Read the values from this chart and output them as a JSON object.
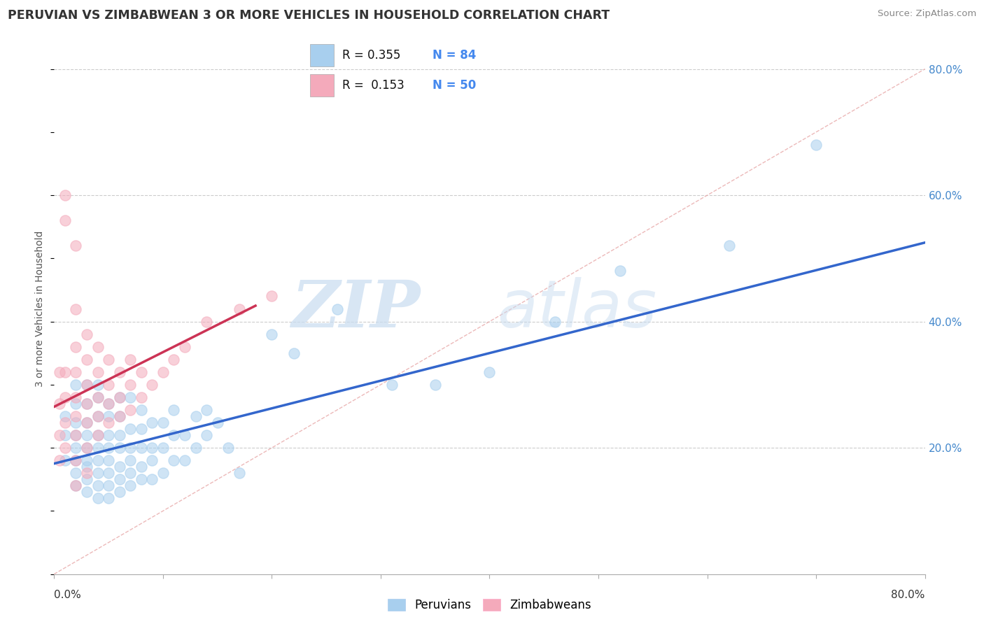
{
  "title": "PERUVIAN VS ZIMBABWEAN 3 OR MORE VEHICLES IN HOUSEHOLD CORRELATION CHART",
  "source": "Source: ZipAtlas.com",
  "ylabel": "3 or more Vehicles in Household",
  "ylabel_right_ticks": [
    "80.0%",
    "60.0%",
    "40.0%",
    "20.0%"
  ],
  "ylabel_right_vals": [
    0.8,
    0.6,
    0.4,
    0.2
  ],
  "xmin": 0.0,
  "xmax": 0.8,
  "ymin": 0.0,
  "ymax": 0.84,
  "legend_r_blue": "0.355",
  "legend_n_blue": "84",
  "legend_r_pink": "0.153",
  "legend_n_pink": "50",
  "blue_color": "#A8CFEE",
  "pink_color": "#F4AABB",
  "blue_line_color": "#3366CC",
  "pink_line_color": "#CC3355",
  "diagonal_color": "#E8A8A8",
  "trend_blue_x0": 0.0,
  "trend_blue_y0": 0.175,
  "trend_blue_x1": 0.8,
  "trend_blue_y1": 0.525,
  "trend_pink_x0": 0.0,
  "trend_pink_y0": 0.265,
  "trend_pink_x1": 0.185,
  "trend_pink_y1": 0.425,
  "watermark_zip": "ZIP",
  "watermark_atlas": "atlas",
  "blue_scatter_x": [
    0.01,
    0.01,
    0.01,
    0.02,
    0.02,
    0.02,
    0.02,
    0.02,
    0.02,
    0.02,
    0.02,
    0.03,
    0.03,
    0.03,
    0.03,
    0.03,
    0.03,
    0.03,
    0.03,
    0.03,
    0.04,
    0.04,
    0.04,
    0.04,
    0.04,
    0.04,
    0.04,
    0.04,
    0.04,
    0.05,
    0.05,
    0.05,
    0.05,
    0.05,
    0.05,
    0.05,
    0.05,
    0.06,
    0.06,
    0.06,
    0.06,
    0.06,
    0.06,
    0.06,
    0.07,
    0.07,
    0.07,
    0.07,
    0.07,
    0.07,
    0.08,
    0.08,
    0.08,
    0.08,
    0.08,
    0.09,
    0.09,
    0.09,
    0.09,
    0.1,
    0.1,
    0.1,
    0.11,
    0.11,
    0.11,
    0.12,
    0.12,
    0.13,
    0.13,
    0.14,
    0.14,
    0.15,
    0.16,
    0.17,
    0.2,
    0.22,
    0.26,
    0.31,
    0.35,
    0.4,
    0.46,
    0.52,
    0.62,
    0.7
  ],
  "blue_scatter_y": [
    0.18,
    0.22,
    0.25,
    0.14,
    0.16,
    0.18,
    0.2,
    0.22,
    0.24,
    0.27,
    0.3,
    0.13,
    0.15,
    0.17,
    0.18,
    0.2,
    0.22,
    0.24,
    0.27,
    0.3,
    0.12,
    0.14,
    0.16,
    0.18,
    0.2,
    0.22,
    0.25,
    0.28,
    0.3,
    0.12,
    0.14,
    0.16,
    0.18,
    0.2,
    0.22,
    0.25,
    0.27,
    0.13,
    0.15,
    0.17,
    0.2,
    0.22,
    0.25,
    0.28,
    0.14,
    0.16,
    0.18,
    0.2,
    0.23,
    0.28,
    0.15,
    0.17,
    0.2,
    0.23,
    0.26,
    0.15,
    0.18,
    0.2,
    0.24,
    0.16,
    0.2,
    0.24,
    0.18,
    0.22,
    0.26,
    0.18,
    0.22,
    0.2,
    0.25,
    0.22,
    0.26,
    0.24,
    0.2,
    0.16,
    0.38,
    0.35,
    0.42,
    0.3,
    0.3,
    0.32,
    0.4,
    0.48,
    0.52,
    0.68
  ],
  "pink_scatter_x": [
    0.005,
    0.005,
    0.005,
    0.005,
    0.01,
    0.01,
    0.01,
    0.01,
    0.01,
    0.02,
    0.02,
    0.02,
    0.02,
    0.02,
    0.02,
    0.02,
    0.02,
    0.03,
    0.03,
    0.03,
    0.03,
    0.03,
    0.03,
    0.04,
    0.04,
    0.04,
    0.04,
    0.04,
    0.05,
    0.05,
    0.05,
    0.05,
    0.06,
    0.06,
    0.06,
    0.07,
    0.07,
    0.07,
    0.08,
    0.08,
    0.09,
    0.1,
    0.11,
    0.12,
    0.14,
    0.17,
    0.2,
    0.02,
    0.03,
    0.01
  ],
  "pink_scatter_y": [
    0.18,
    0.22,
    0.27,
    0.32,
    0.2,
    0.24,
    0.28,
    0.32,
    0.56,
    0.18,
    0.22,
    0.25,
    0.28,
    0.32,
    0.36,
    0.42,
    0.52,
    0.2,
    0.24,
    0.27,
    0.3,
    0.34,
    0.38,
    0.22,
    0.25,
    0.28,
    0.32,
    0.36,
    0.24,
    0.27,
    0.3,
    0.34,
    0.25,
    0.28,
    0.32,
    0.26,
    0.3,
    0.34,
    0.28,
    0.32,
    0.3,
    0.32,
    0.34,
    0.36,
    0.4,
    0.42,
    0.44,
    0.14,
    0.16,
    0.6
  ]
}
